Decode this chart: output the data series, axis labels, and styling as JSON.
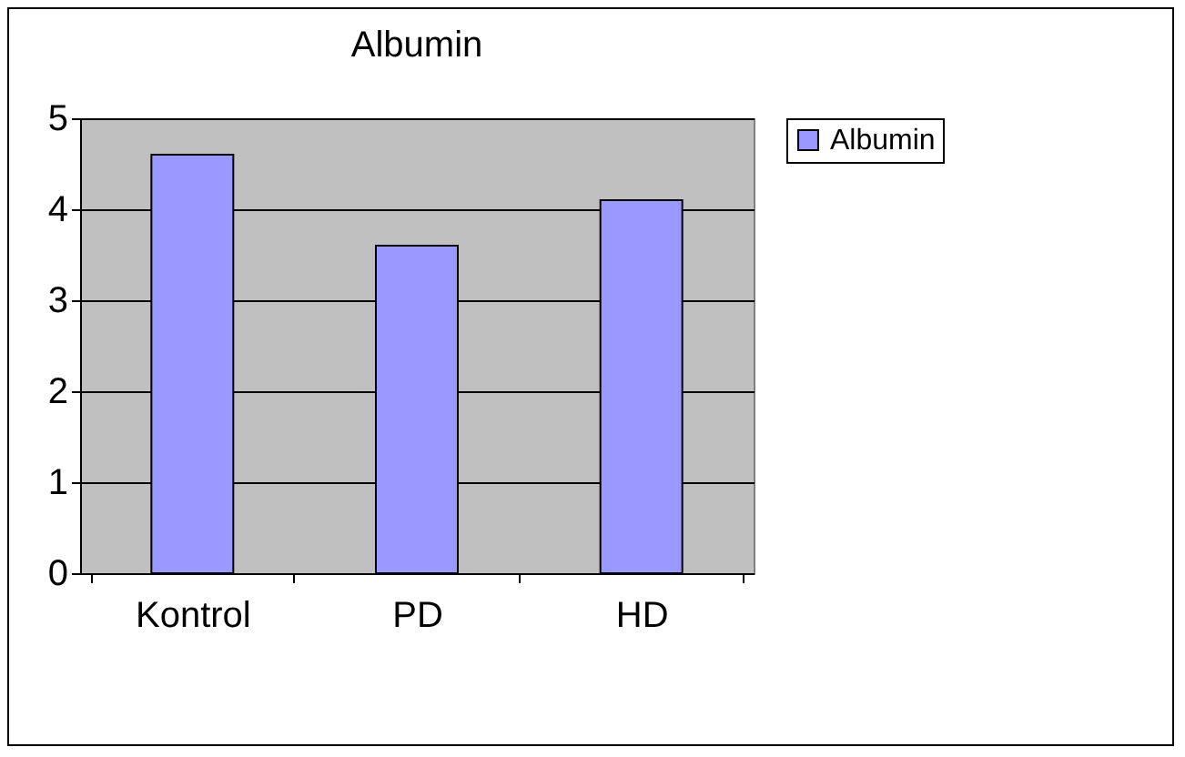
{
  "chart_data": {
    "type": "bar",
    "title": "Albumin",
    "categories": [
      "Kontrol",
      "PD",
      "HD"
    ],
    "series": [
      {
        "name": "Albumin",
        "color": "#9999ff",
        "values": [
          4.6,
          3.6,
          4.1
        ]
      }
    ],
    "ylim": [
      0,
      5
    ],
    "yticks": [
      0,
      1,
      2,
      3,
      4,
      5
    ],
    "grid": "y",
    "legend": "right"
  }
}
